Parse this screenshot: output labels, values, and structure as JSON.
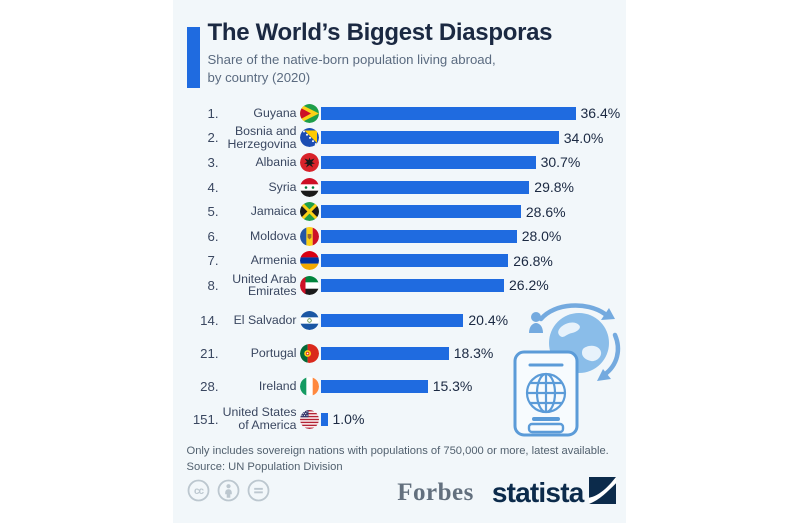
{
  "page": {
    "background": "#ffffff",
    "card_background": "#f2f7fa"
  },
  "header": {
    "title": "The World’s Biggest Diasporas",
    "subtitle_line1": "Share of the native-born population living abroad,",
    "subtitle_line2": "by country (2020)",
    "accent_color": "#1f6be0"
  },
  "chart_data": {
    "type": "bar",
    "orientation": "horizontal",
    "unit": "%",
    "max_value": 36.4,
    "bar_color": "#1f6be0",
    "rows": [
      {
        "rank": "1.",
        "country": "Guyana",
        "value": 36.4,
        "label": "36.4%",
        "flag": "guyana-flag",
        "group": "top"
      },
      {
        "rank": "2.",
        "country": "Bosnia and Herzegovina",
        "value": 34.0,
        "label": "34.0%",
        "flag": "bosnia-and-herzegovina-flag",
        "group": "top"
      },
      {
        "rank": "3.",
        "country": "Albania",
        "value": 30.7,
        "label": "30.7%",
        "flag": "albania-flag",
        "group": "top"
      },
      {
        "rank": "4.",
        "country": "Syria",
        "value": 29.8,
        "label": "29.8%",
        "flag": "syria-flag",
        "group": "top"
      },
      {
        "rank": "5.",
        "country": "Jamaica",
        "value": 28.6,
        "label": "28.6%",
        "flag": "jamaica-flag",
        "group": "top"
      },
      {
        "rank": "6.",
        "country": "Moldova",
        "value": 28.0,
        "label": "28.0%",
        "flag": "moldova-flag",
        "group": "top"
      },
      {
        "rank": "7.",
        "country": "Armenia",
        "value": 26.8,
        "label": "26.8%",
        "flag": "armenia-flag",
        "group": "top"
      },
      {
        "rank": "8.",
        "country": "United Arab Emirates",
        "value": 26.2,
        "label": "26.2%",
        "flag": "united-arab-emirates-flag",
        "group": "top"
      },
      {
        "rank": "14.",
        "country": "El Salvador",
        "value": 20.4,
        "label": "20.4%",
        "flag": "el-salvador-flag",
        "group": "bottom"
      },
      {
        "rank": "21.",
        "country": "Portugal",
        "value": 18.3,
        "label": "18.3%",
        "flag": "portugal-flag",
        "group": "bottom"
      },
      {
        "rank": "28.",
        "country": "Ireland",
        "value": 15.3,
        "label": "15.3%",
        "flag": "ireland-flag",
        "group": "bottom"
      },
      {
        "rank": "151.",
        "country": "United States of America",
        "value": 1.0,
        "label": "1.0%",
        "flag": "united-states-flag",
        "group": "bottom"
      }
    ]
  },
  "footer": {
    "note": "Only includes sovereign nations with populations of 750,000 or more, latest available.",
    "source": "Source: UN Population Division",
    "license_icons": [
      "cc-icon",
      "attribution-icon",
      "no-derivatives-icon"
    ],
    "brands": {
      "forbes": "Forbes",
      "statista": "statista"
    }
  },
  "illustration": {
    "name": "passport-globe-illustration",
    "color_light": "#8abde9",
    "color_medium": "#5b9bd8"
  }
}
